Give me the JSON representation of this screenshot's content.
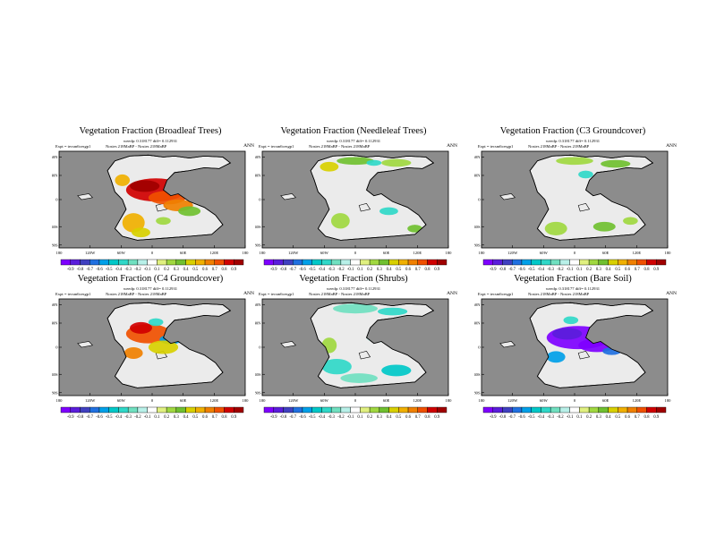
{
  "common": {
    "latitude_labels": [
      "60N",
      "40N",
      "0",
      "40S",
      "80S"
    ],
    "longitude_labels": [
      "180",
      "120W",
      "60W",
      "0",
      "60E",
      "120E",
      "180"
    ],
    "colorbar_labels": [
      "-0.9",
      "-0.8",
      "-0.7",
      "-0.6",
      "-0.5",
      "-0.4",
      "-0.3",
      "-0.2",
      "-0.1",
      "0.1",
      "0.2",
      "0.3",
      "0.4",
      "0.5",
      "0.6",
      "0.7",
      "0.8",
      "0.9"
    ],
    "colorbar_colors": [
      "#7e00ff",
      "#5a1ddb",
      "#4040c0",
      "#2070e0",
      "#00a0e8",
      "#00c8c8",
      "#30d8c8",
      "#70e0c0",
      "#b8f0e8",
      "#ffffff",
      "#e0f080",
      "#a0d840",
      "#70c030",
      "#d8d000",
      "#f0b000",
      "#f08000",
      "#f05000",
      "#d00000",
      "#a00000"
    ],
    "ocean_color": "#8c8c8c",
    "land_color": "#ebebeb"
  },
  "panels": [
    {
      "title": "Vegetation Fraction (Broadleaf Trees)",
      "stats": "weedp: 0.318177 diff= 0.112931",
      "expt": "Expt = tecsm6cesgp1",
      "names": "Nosies 218MaBP - Nosies 218MaBP",
      "season": "ANN"
    },
    {
      "title": "Vegetation Fraction (Needleleaf Trees)",
      "stats": "weedp: 0.318177 diff= 0.112931",
      "expt": "Expt = tecsm6cesgp1",
      "names": "Nosies 218MaBP - Nosies 218MaBP",
      "season": "ANN"
    },
    {
      "title": "Vegetation Fraction (C3 Groundcover)",
      "stats": "weedp: 0.318177 diff= 0.112931",
      "expt": "Expt = tecsm6cesgp1",
      "names": "Nosies 218MaBP - Nosies 218MaBP",
      "season": "ANN"
    },
    {
      "title": "Vegetation Fraction (C4 Groundcover)",
      "stats": "weedp: 0.318177 diff= 0.112931",
      "expt": "Expt = tecsm6cesgp1",
      "names": "Nosies 218MaBP - Nosies 218MaBP",
      "season": "ANN"
    },
    {
      "title": "Vegetation Fraction (Shrubs)",
      "stats": "weedp: 0.318177 diff= 0.112931",
      "expt": "Expt = tecsm6cesgp1",
      "names": "Nosies 218MaBP - Nosies 218MaBP",
      "season": "ANN"
    },
    {
      "title": "Vegetation Fraction (Bare Soil)",
      "stats": "weedp: 0.318177 diff= 0.112931",
      "expt": "Expt = tecsm6cesgp1",
      "names": "Nosies 218MaBP - Nosies 218MaBP",
      "season": "ANN"
    }
  ]
}
